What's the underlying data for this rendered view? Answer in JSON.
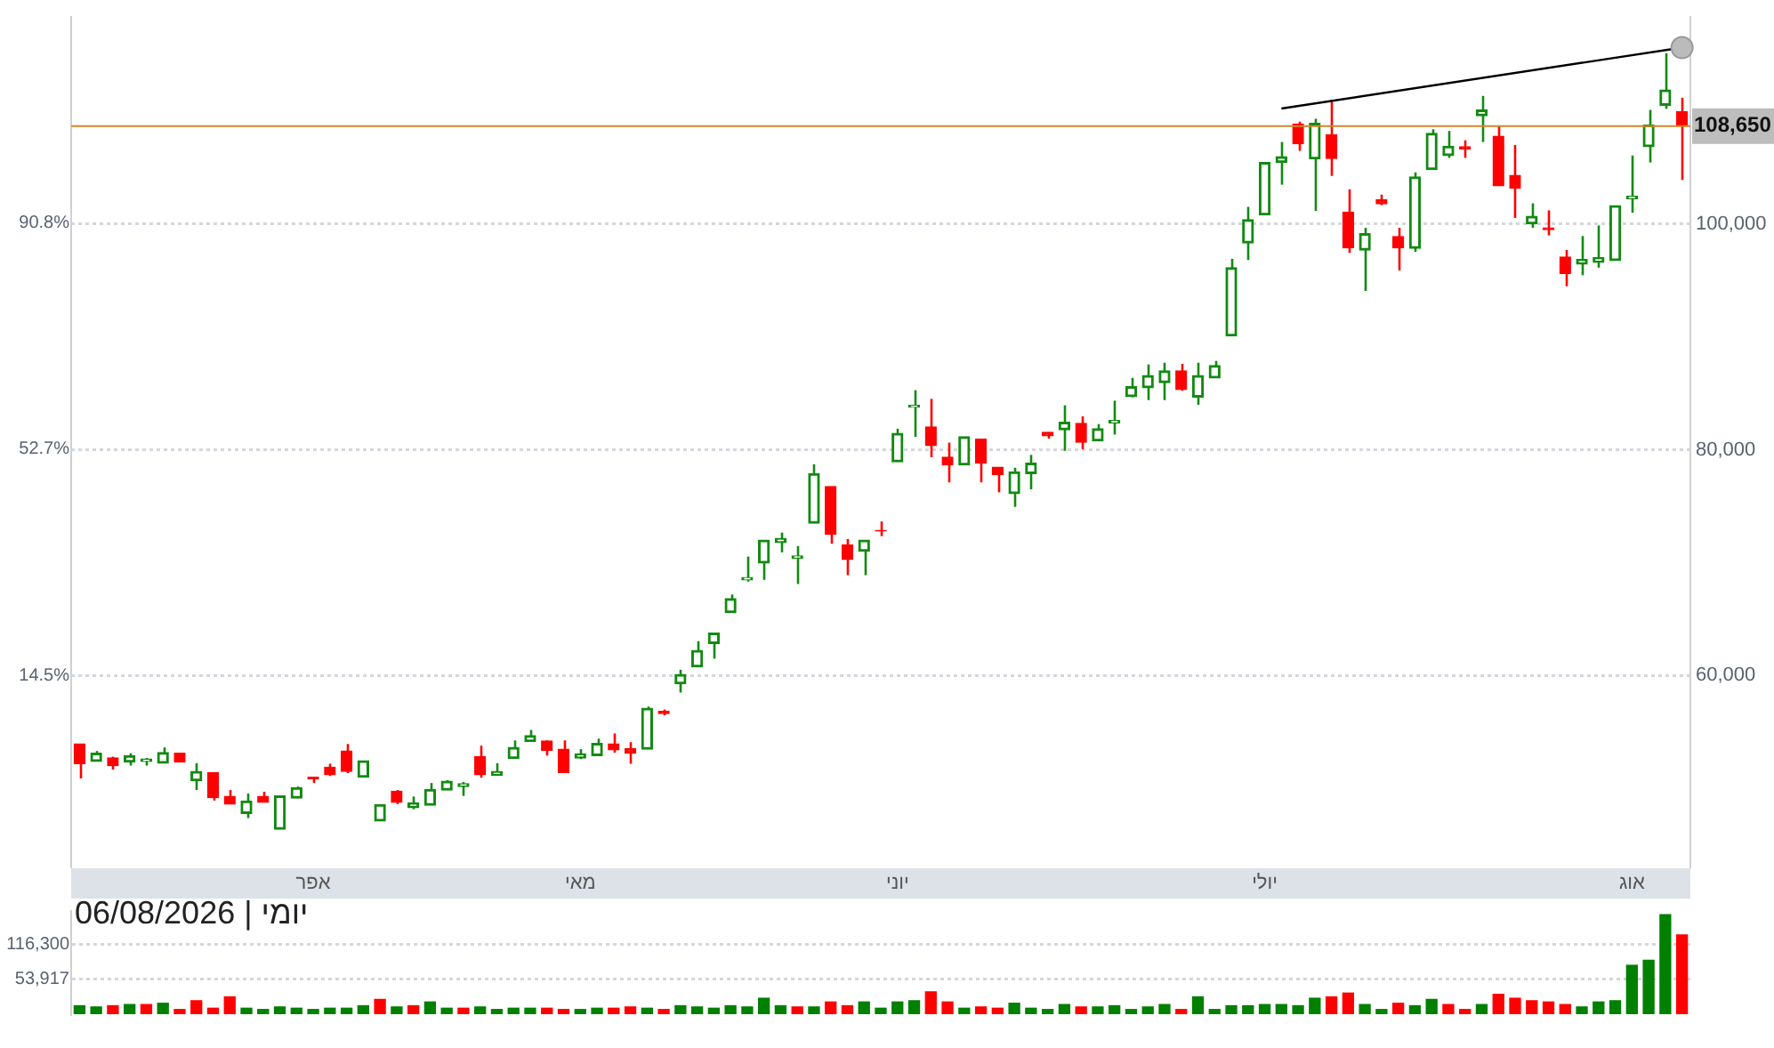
{
  "chart_data": [
    {
      "type": "candlestick",
      "categories": [
        null,
        null,
        null,
        null,
        null,
        null,
        null,
        null,
        null,
        null,
        null,
        null,
        null,
        null,
        "אפר",
        null,
        null,
        null,
        null,
        null,
        null,
        null,
        null,
        null,
        null,
        null,
        null,
        null,
        null,
        null,
        "מאי",
        null,
        null,
        null,
        null,
        null,
        null,
        null,
        null,
        null,
        null,
        null,
        null,
        null,
        null,
        null,
        null,
        null,
        null,
        "יוני",
        null,
        null,
        null,
        null,
        null,
        null,
        null,
        null,
        null,
        null,
        null,
        null,
        null,
        null,
        null,
        null,
        null,
        null,
        null,
        null,
        null,
        "יולי",
        null,
        null,
        null,
        null,
        null,
        null,
        null,
        null,
        null,
        null,
        null,
        null,
        null,
        null,
        null,
        null,
        null,
        null,
        null,
        null,
        null,
        "אוג",
        null,
        null,
        null
      ],
      "ohlc": [
        [
          53950,
          53950,
          50900,
          52200
        ],
        [
          52400,
          53330,
          52400,
          53130
        ],
        [
          52710,
          52820,
          51680,
          52040
        ],
        [
          52350,
          53130,
          52040,
          52920
        ],
        [
          52400,
          52710,
          52040,
          52610
        ],
        [
          52250,
          53640,
          52250,
          53180
        ],
        [
          53130,
          53130,
          52350,
          52350
        ],
        [
          50700,
          52250,
          49870,
          51520
        ],
        [
          51420,
          51420,
          48940,
          49200
        ],
        [
          49300,
          49870,
          48630,
          48630
        ],
        [
          47800,
          49560,
          47390,
          48890
        ],
        [
          49300,
          49720,
          48790,
          48790
        ],
        [
          46410,
          49350,
          46410,
          49350
        ],
        [
          49150,
          50180,
          49150,
          50080
        ],
        [
          51010,
          51010,
          50490,
          50850
        ],
        [
          51890,
          52200,
          51110,
          51220
        ],
        [
          53330,
          53950,
          51370,
          51520
        ],
        [
          51010,
          52460,
          51010,
          52460
        ],
        [
          47130,
          48580,
          47130,
          48580
        ],
        [
          49770,
          49870,
          48630,
          48790
        ],
        [
          48320,
          49300,
          48170,
          48730
        ],
        [
          48530,
          50490,
          48530,
          49920
        ],
        [
          49870,
          50750,
          49870,
          50650
        ],
        [
          50180,
          50590,
          49350,
          50440
        ],
        [
          52820,
          53800,
          50960,
          51220
        ],
        [
          51160,
          52250,
          51160,
          51520
        ],
        [
          52660,
          54260,
          52660,
          53640
        ],
        [
          54160,
          55190,
          54160,
          54680
        ],
        [
          54210,
          54260,
          52920,
          53390
        ],
        [
          53490,
          54260,
          51420,
          51420
        ],
        [
          52710,
          53490,
          52610,
          53070
        ],
        [
          52920,
          54420,
          52920,
          54000
        ],
        [
          53950,
          54880,
          53180,
          53440
        ],
        [
          53540,
          54110,
          52200,
          53130
        ],
        [
          53490,
          57260,
          53490,
          57110
        ],
        [
          56850,
          57000,
          56490,
          56640
        ],
        [
          59280,
          60520,
          58500,
          60100
        ],
        [
          60780,
          63050,
          60780,
          62220
        ],
        [
          62840,
          63770,
          61500,
          63770
        ],
        [
          65580,
          67180,
          65580,
          66820
        ],
        [
          68480,
          70540,
          68320,
          68680
        ],
        [
          69970,
          71990,
          68480,
          71990
        ],
        [
          71780,
          72660,
          70910,
          72150
        ],
        [
          70390,
          71470,
          68110,
          70600
        ],
        [
          73490,
          78710,
          73490,
          77880
        ],
        [
          76740,
          76740,
          71680,
          72510
        ],
        [
          71580,
          72090,
          68890,
          70280
        ],
        [
          71010,
          71990,
          68890,
          71990
        ],
        [
          72850,
          73640,
          72350,
          72800
        ],
        [
          78920,
          81860,
          78920,
          81450
        ],
        [
          83770,
          85270,
          81140,
          83930
        ],
        [
          82020,
          84500,
          79330,
          80360
        ],
        [
          79330,
          80620,
          77110,
          78660
        ],
        [
          78660,
          81140,
          78660,
          81140
        ],
        [
          80930,
          80930,
          77110,
          78810
        ],
        [
          78450,
          78450,
          76230,
          77780
        ],
        [
          76120,
          78400,
          74940,
          78040
        ],
        [
          77880,
          79540,
          76490,
          78810
        ],
        [
          81550,
          81550,
          80980,
          81240
        ],
        [
          81760,
          83930,
          79900,
          82430
        ],
        [
          82330,
          82950,
          80050,
          80670
        ],
        [
          80780,
          82270,
          80780,
          81860
        ],
        [
          82380,
          84340,
          81340,
          82580
        ],
        [
          84700,
          86360,
          84650,
          85580
        ],
        [
          85480,
          87550,
          84390,
          86560
        ],
        [
          85940,
          87700,
          84390,
          86980
        ],
        [
          86980,
          87600,
          85220,
          85320
        ],
        [
          84650,
          87700,
          83980,
          86560
        ],
        [
          86360,
          87860,
          86360,
          87440
        ],
        [
          90080,
          96900,
          90080,
          96120
        ],
        [
          98300,
          101500,
          96800,
          100360
        ],
        [
          100780,
          105430,
          100780,
          105430
        ],
        [
          105430,
          107240,
          103460,
          105940
        ],
        [
          108840,
          109040,
          106460,
          107080
        ],
        [
          105740,
          109300,
          101140,
          108890
        ],
        [
          107860,
          110960,
          104240,
          105790
        ],
        [
          101030,
          103050,
          97420,
          97880
        ],
        [
          97680,
          99640,
          94060,
          99120
        ],
        [
          102120,
          102580,
          101650,
          101760
        ],
        [
          98860,
          99640,
          95870,
          97880
        ],
        [
          97830,
          104550,
          97520,
          104140
        ],
        [
          104810,
          108370,
          104810,
          108010
        ],
        [
          106050,
          108220,
          105840,
          106870
        ],
        [
          106820,
          107390,
          105840,
          106620
        ],
        [
          109560,
          111320,
          107240,
          110080
        ],
        [
          107750,
          108630,
          103360,
          103360
        ],
        [
          104290,
          106980,
          100520,
          103150
        ],
        [
          100000,
          101810,
          99640,
          100670
        ],
        [
          99640,
          101190,
          98970,
          99480
        ],
        [
          97050,
          97680,
          94470,
          95610
        ],
        [
          96430,
          98920,
          95450,
          96850
        ],
        [
          96590,
          99850,
          96120,
          97000
        ],
        [
          96740,
          101600,
          96740,
          101600
        ],
        [
          102220,
          106050,
          100980,
          102430
        ],
        [
          106820,
          110080,
          105430,
          108730
        ],
        [
          110490,
          115090,
          110180,
          111840
        ],
        [
          109920,
          111160,
          103880,
          108650
        ]
      ],
      "colors": [
        "#ff0000",
        "#128a12",
        "#ff0000",
        "#128a12",
        "#128a12",
        "#128a12",
        "#ff0000",
        "#128a12",
        "#ff0000",
        "#ff0000",
        "#128a12",
        "#ff0000",
        "#128a12",
        "#128a12",
        "#ff0000",
        "#ff0000",
        "#ff0000",
        "#128a12",
        "#128a12",
        "#ff0000",
        "#128a12",
        "#128a12",
        "#128a12",
        "#128a12",
        "#ff0000",
        "#128a12",
        "#128a12",
        "#128a12",
        "#ff0000",
        "#ff0000",
        "#128a12",
        "#128a12",
        "#ff0000",
        "#ff0000",
        "#128a12",
        "#ff0000",
        "#128a12",
        "#128a12",
        "#128a12",
        "#128a12",
        "#128a12",
        "#128a12",
        "#128a12",
        "#128a12",
        "#128a12",
        "#ff0000",
        "#ff0000",
        "#128a12",
        "#ff0000",
        "#128a12",
        "#128a12",
        "#ff0000",
        "#ff0000",
        "#128a12",
        "#ff0000",
        "#ff0000",
        "#128a12",
        "#128a12",
        "#ff0000",
        "#128a12",
        "#ff0000",
        "#128a12",
        "#128a12",
        "#128a12",
        "#128a12",
        "#128a12",
        "#ff0000",
        "#128a12",
        "#128a12",
        "#128a12",
        "#128a12",
        "#128a12",
        "#128a12",
        "#ff0000",
        "#128a12",
        "#ff0000",
        "#ff0000",
        "#128a12",
        "#ff0000",
        "#ff0000",
        "#128a12",
        "#128a12",
        "#128a12",
        "#ff0000",
        "#128a12",
        "#ff0000",
        "#ff0000",
        "#128a12",
        "#ff0000",
        "#ff0000",
        "#128a12",
        "#128a12",
        "#128a12",
        "#128a12",
        "#128a12",
        "#128a12",
        "#ff0000"
      ],
      "series": [
        {
          "type": "line",
          "color": "#000000",
          "values": [
            null,
            null,
            null,
            null,
            null,
            null,
            null,
            null,
            null,
            null,
            null,
            null,
            null,
            null,
            null,
            null,
            null,
            null,
            null,
            null,
            null,
            null,
            null,
            null,
            null,
            null,
            null,
            null,
            null,
            null,
            null,
            null,
            null,
            null,
            null,
            null,
            null,
            null,
            null,
            null,
            null,
            null,
            null,
            null,
            null,
            null,
            null,
            null,
            null,
            null,
            null,
            null,
            null,
            null,
            null,
            null,
            null,
            null,
            null,
            null,
            null,
            null,
            null,
            null,
            null,
            null,
            null,
            null,
            null,
            null,
            null,
            null,
            110200,
            null,
            null,
            null,
            null,
            null,
            null,
            null,
            null,
            null,
            null,
            null,
            null,
            null,
            null,
            null,
            null,
            null,
            null,
            null,
            null,
            null,
            null,
            null,
            115600
          ]
        }
      ],
      "ylim": [
        43100,
        118300
      ],
      "yticks": [
        {
          "value": 60000,
          "label": "60,000"
        },
        {
          "value": 80000,
          "label": "80,000"
        },
        {
          "value": 100000,
          "label": "100,000"
        }
      ],
      "y2lim": [
        -17.69,
        125.56
      ],
      "y2ticks": [
        {
          "value": 14.5,
          "label": "14.5%"
        },
        {
          "value": 52.7,
          "label": "52.7%"
        },
        {
          "value": 90.8,
          "label": "90.8%"
        }
      ],
      "grid": "y",
      "ref_lines": [
        {
          "axis": "y",
          "value": 108650,
          "label": "108,650",
          "color": "#d4862a"
        }
      ]
    },
    {
      "type": "bar",
      "title": "יומי | 06/08/2026",
      "categories": [
        null,
        null,
        null,
        null,
        null,
        null,
        null,
        null,
        null,
        null,
        null,
        null,
        null,
        null,
        null,
        null,
        null,
        null,
        null,
        null,
        null,
        null,
        null,
        null,
        null,
        null,
        null,
        null,
        null,
        null,
        null,
        null,
        null,
        null,
        null,
        null,
        null,
        null,
        null,
        null,
        null,
        null,
        null,
        null,
        null,
        null,
        null,
        null,
        null,
        null,
        null,
        null,
        null,
        null,
        null,
        null,
        null,
        null,
        null,
        null,
        null,
        null,
        null,
        null,
        null,
        null,
        null,
        null,
        null,
        null,
        null,
        null,
        null,
        null,
        null,
        null,
        null,
        null,
        null,
        null,
        null,
        null,
        null,
        null,
        null,
        null,
        null,
        null,
        null,
        null,
        null,
        null,
        null,
        null,
        null,
        null,
        null
      ],
      "values": [
        29400,
        28600,
        29400,
        30200,
        30200,
        31100,
        27000,
        32900,
        27800,
        35900,
        27800,
        27000,
        28600,
        27800,
        27000,
        27800,
        27800,
        29400,
        33900,
        28600,
        29400,
        32000,
        27800,
        27800,
        28600,
        27000,
        27800,
        27800,
        27800,
        27000,
        27000,
        27800,
        27800,
        28600,
        27800,
        27000,
        29400,
        28600,
        27800,
        29400,
        28600,
        34800,
        29400,
        28600,
        28600,
        32000,
        29400,
        32000,
        27800,
        32000,
        32900,
        40200,
        32000,
        27800,
        28600,
        27800,
        31100,
        27800,
        27000,
        30200,
        28600,
        28600,
        29400,
        27000,
        28600,
        30200,
        27000,
        35900,
        27000,
        29400,
        29400,
        30200,
        30200,
        29400,
        34800,
        35900,
        39100,
        30200,
        27000,
        31100,
        29400,
        33900,
        30200,
        27000,
        30200,
        38000,
        34800,
        32900,
        32000,
        30200,
        28600,
        32000,
        32900,
        73100,
        81900,
        228200,
        144700
      ],
      "colors": [
        "#008000",
        "#008000",
        "#ff0000",
        "#008000",
        "#ff0000",
        "#008000",
        "#ff0000",
        "#ff0000",
        "#ff0000",
        "#ff0000",
        "#008000",
        "#008000",
        "#008000",
        "#008000",
        "#008000",
        "#008000",
        "#008000",
        "#008000",
        "#ff0000",
        "#008000",
        "#ff0000",
        "#008000",
        "#008000",
        "#ff0000",
        "#008000",
        "#008000",
        "#008000",
        "#008000",
        "#ff0000",
        "#ff0000",
        "#008000",
        "#008000",
        "#ff0000",
        "#ff0000",
        "#008000",
        "#ff0000",
        "#008000",
        "#008000",
        "#008000",
        "#008000",
        "#008000",
        "#008000",
        "#008000",
        "#ff0000",
        "#008000",
        "#ff0000",
        "#ff0000",
        "#008000",
        "#008000",
        "#008000",
        "#008000",
        "#ff0000",
        "#ff0000",
        "#008000",
        "#ff0000",
        "#ff0000",
        "#008000",
        "#008000",
        "#008000",
        "#008000",
        "#ff0000",
        "#008000",
        "#008000",
        "#008000",
        "#008000",
        "#008000",
        "#ff0000",
        "#008000",
        "#008000",
        "#008000",
        "#008000",
        "#008000",
        "#008000",
        "#008000",
        "#008000",
        "#ff0000",
        "#ff0000",
        "#008000",
        "#008000",
        "#ff0000",
        "#008000",
        "#008000",
        "#ff0000",
        "#ff0000",
        "#008000",
        "#ff0000",
        "#ff0000",
        "#ff0000",
        "#ff0000",
        "#ff0000",
        "#008000",
        "#008000",
        "#008000",
        "#008000",
        "#008000",
        "#008000",
        "#ff0000"
      ],
      "log": "y",
      "ylim": [
        24300,
        248600
      ],
      "yticks": [
        {
          "value": 53917,
          "label": "53,917"
        },
        {
          "value": 116300,
          "label": "116,300"
        }
      ],
      "grid": "y",
      "tick_labels": "y"
    }
  ]
}
